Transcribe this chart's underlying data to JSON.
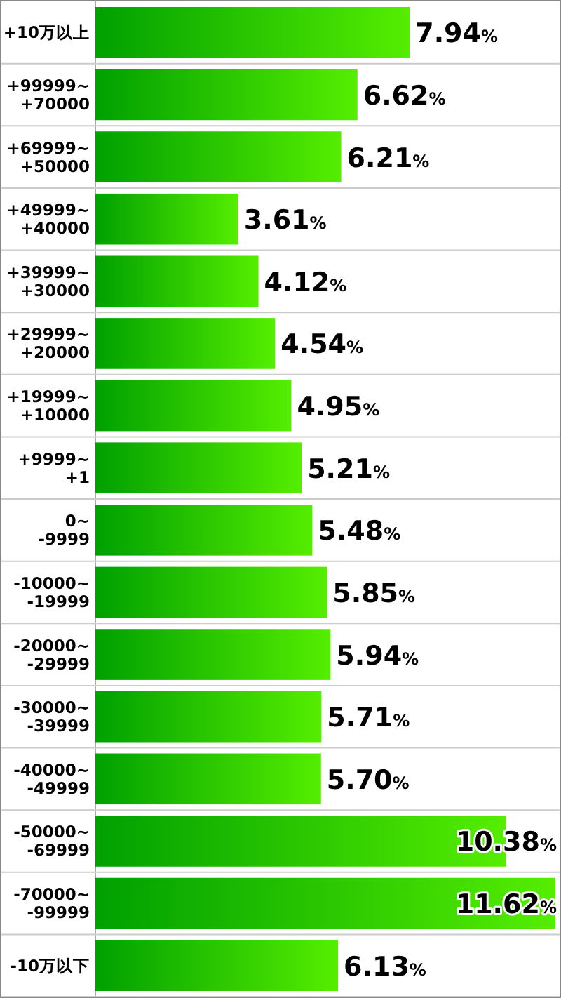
{
  "chart_data": {
    "type": "bar",
    "orientation": "horizontal",
    "categories": [
      "+10万以上",
      "+99999~\n+70000",
      "+69999~\n+50000",
      "+49999~\n+40000",
      "+39999~\n+30000",
      "+29999~\n+20000",
      "+19999~\n+10000",
      "+9999~\n+1",
      "0~\n-9999",
      "-10000~\n-19999",
      "-20000~\n-29999",
      "-30000~\n-39999",
      "-40000~\n-49999",
      "-50000~\n-69999",
      "-70000~\n-99999",
      "-10万以下"
    ],
    "values": [
      7.94,
      6.62,
      6.21,
      3.61,
      4.12,
      4.54,
      4.95,
      5.21,
      5.48,
      5.85,
      5.94,
      5.71,
      5.7,
      10.38,
      11.62,
      6.13
    ],
    "value_labels": [
      "7.94%",
      "6.62%",
      "6.21%",
      "3.61%",
      "4.12%",
      "4.54%",
      "4.95%",
      "5.21%",
      "5.48%",
      "5.85%",
      "5.94%",
      "5.71%",
      "5.70%",
      "10.38%",
      "11.62%",
      "6.13%"
    ],
    "color": "#55ee00",
    "grid": "y"
  }
}
